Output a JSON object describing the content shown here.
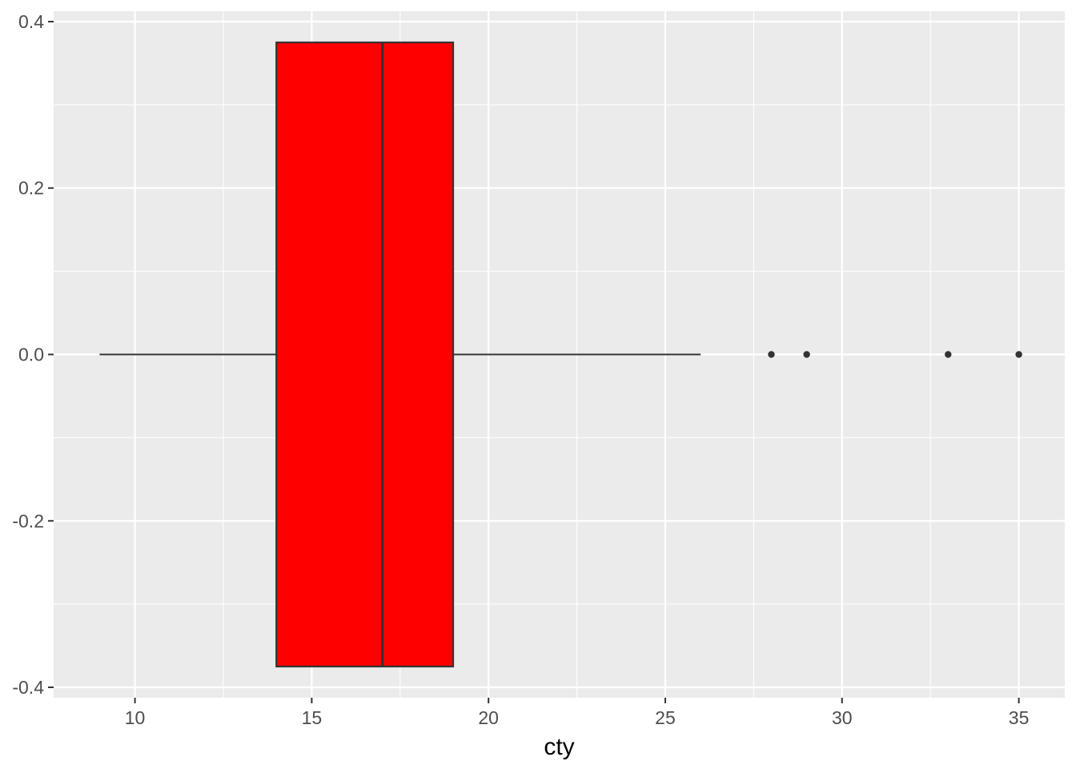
{
  "chart_data": {
    "type": "boxplot",
    "orientation": "horizontal",
    "title": "",
    "xlabel": "cty",
    "ylabel": "",
    "xlim": [
      7.7,
      36.3
    ],
    "ylim": [
      -0.4125,
      0.4125
    ],
    "grid": true,
    "x_major_ticks": [
      10,
      15,
      20,
      25,
      30,
      35
    ],
    "x_tick_labels": [
      "10",
      "15",
      "20",
      "25",
      "30",
      "35"
    ],
    "x_minor_ticks": [
      12.5,
      17.5,
      22.5,
      27.5,
      32.5
    ],
    "y_major_ticks": [
      -0.4,
      -0.2,
      0.0,
      0.2,
      0.4
    ],
    "y_tick_labels": [
      "-0.4",
      "-0.2",
      "0.0",
      "0.2",
      "0.4"
    ],
    "y_minor_ticks": [
      -0.3,
      -0.1,
      0.1,
      0.3
    ],
    "series": [
      {
        "name": "cty",
        "y_center": 0,
        "box_half_width": 0.375,
        "whisker_min": 9,
        "q1": 14,
        "median": 17,
        "q3": 19,
        "whisker_max": 26,
        "outliers": [
          28,
          29,
          33,
          35
        ]
      }
    ],
    "colors": {
      "box_fill": "#FF0000",
      "box_stroke": "#333333",
      "outlier_fill": "#333333",
      "panel_background": "#EBEBEB",
      "grid_major": "#FFFFFF",
      "grid_minor": "#FFFFFF",
      "tick_mark": "#333333",
      "tick_label": "#4D4D4D",
      "axis_title": "#000000",
      "figure_background": "#FFFFFF"
    }
  }
}
